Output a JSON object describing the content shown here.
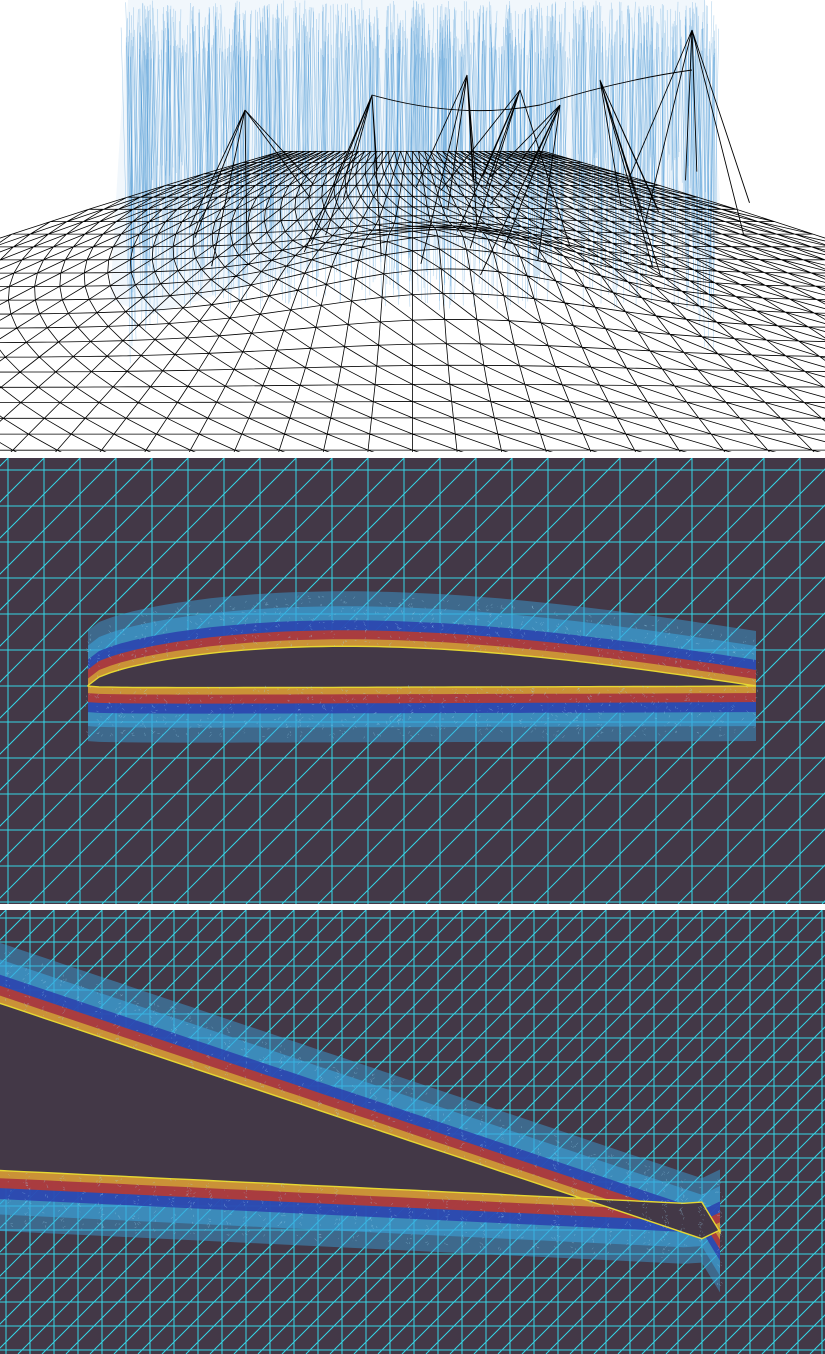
{
  "figure": {
    "panels": [
      {
        "id": "top",
        "description_name": "3d-wireframe-mesh-with-height-field",
        "background": "#ffffff",
        "colors": {
          "mesh": "#000000",
          "refined": "#3a8fd1"
        }
      },
      {
        "id": "middle",
        "description_name": "airfoil-refined-mesh-overview",
        "background": "#433847",
        "colors": {
          "grid": "#35d6e6",
          "outer_refine": "#3aa7e0",
          "mid_refine": "#2a3fae",
          "inner_refine": "#c0392b",
          "boundary": "#e6d832"
        }
      },
      {
        "id": "bottom",
        "description_name": "airfoil-trailing-edge-zoom",
        "background": "#433847",
        "colors": {
          "grid": "#35d6e6",
          "outer_refine": "#3aa7e0",
          "mid_refine": "#2a3fae",
          "inner_refine": "#c0392b",
          "boundary": "#e6d832"
        }
      }
    ]
  }
}
